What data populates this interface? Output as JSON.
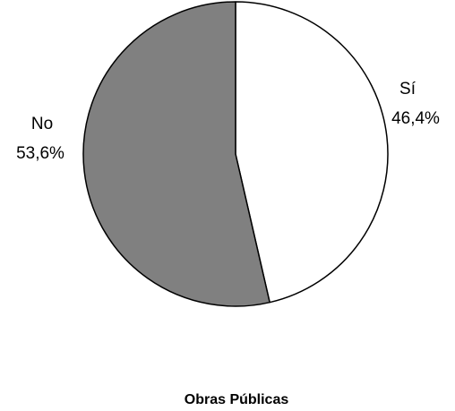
{
  "chart_data": {
    "type": "pie",
    "title": "Obras Públicas",
    "slices": [
      {
        "label": "Sí",
        "value": 46.4,
        "value_label": "46,4%",
        "color": "#ffffff"
      },
      {
        "label": "No",
        "value": 53.6,
        "value_label": "53,6%",
        "color": "#808080"
      }
    ],
    "start_angle_deg": 0,
    "direction": "clockwise",
    "legend": "none"
  }
}
